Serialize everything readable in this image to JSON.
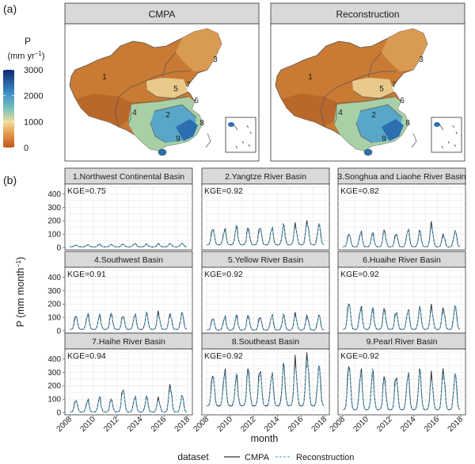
{
  "figure": {
    "label_a": "(a)",
    "label_b": "(b)",
    "colors": {
      "cmpa": "#333333",
      "reconstruction": "#56b4e9"
    }
  },
  "maps": {
    "panels": [
      {
        "title": "CMPA"
      },
      {
        "title": "Reconstruction"
      }
    ],
    "colorbar": {
      "title_line1": "P",
      "title_line2_base": "(mm yr",
      "title_line2_sup": "−1",
      "title_line2_close": ")",
      "ticks": [
        "3000",
        "2000",
        "1000",
        "0"
      ],
      "tick_values": [
        3000,
        2000,
        1000,
        0
      ],
      "range": [
        0,
        3000
      ]
    },
    "region_labels": [
      "1",
      "2",
      "3",
      "4",
      "5",
      "6",
      "7",
      "8",
      "9"
    ]
  },
  "chart_data": {
    "type": "line",
    "xlabel": "month",
    "ylabel_base": "P (mm month",
    "ylabel_sup": "−1",
    "ylabel_close": ")",
    "xlim": [
      2008,
      2018
    ],
    "x_ticks": [
      "2008",
      "2010",
      "2012",
      "2014",
      "2016",
      "2018"
    ],
    "x_tick_values": [
      2008,
      2010,
      2012,
      2014,
      2016,
      2018
    ],
    "ylim": [
      0,
      450
    ],
    "y_ticks": [
      "0",
      "100",
      "200",
      "300",
      "400"
    ],
    "y_tick_values": [
      0,
      100,
      200,
      300,
      400
    ],
    "legend": {
      "title": "dataset",
      "position": "bottom",
      "entries": [
        "CMPA",
        "Reconstruction"
      ]
    },
    "panels": [
      {
        "title": "1.Northwest Continental Basin",
        "kge": "KGE=0.75",
        "peaks": [
          18,
          20,
          24,
          22,
          25,
          30,
          26,
          28,
          30,
          32
        ],
        "base": 5
      },
      {
        "title": "2.Yangtze River Basin",
        "kge": "KGE=0.92",
        "peaks": [
          150,
          140,
          155,
          145,
          160,
          150,
          165,
          170,
          205,
          180
        ],
        "base": 20
      },
      {
        "title": "3.Songhua and Liaohe River Basin",
        "kge": "KGE=0.82",
        "peaks": [
          110,
          120,
          105,
          130,
          110,
          140,
          120,
          175,
          100,
          130
        ],
        "base": 5
      },
      {
        "title": "4.Southwest Basin",
        "kge": "KGE=0.91",
        "peaks": [
          120,
          125,
          115,
          130,
          120,
          125,
          130,
          135,
          130,
          140
        ],
        "base": 10
      },
      {
        "title": "5.Yellow River Basin",
        "kge": "KGE=0.92",
        "peaks": [
          100,
          105,
          110,
          115,
          110,
          120,
          115,
          125,
          115,
          120
        ],
        "base": 5
      },
      {
        "title": "6.Huaihe River Basin",
        "kge": "KGE=0.92",
        "peaks": [
          225,
          180,
          160,
          165,
          150,
          160,
          170,
          180,
          175,
          190
        ],
        "base": 10
      },
      {
        "title": "7.Haihe River Basin",
        "kge": "KGE=0.94",
        "peaks": [
          100,
          95,
          110,
          100,
          190,
          120,
          115,
          105,
          215,
          130
        ],
        "base": 3
      },
      {
        "title": "8.Southeast Basin",
        "kge": "KGE=0.92",
        "peaks": [
          300,
          320,
          270,
          330,
          340,
          300,
          350,
          390,
          455,
          360
        ],
        "base": 50
      },
      {
        "title": "9.Pearl River Basin",
        "kge": "KGE=0.92",
        "peaks": [
          385,
          320,
          300,
          270,
          290,
          300,
          310,
          280,
          335,
          300
        ],
        "base": 20
      }
    ]
  }
}
